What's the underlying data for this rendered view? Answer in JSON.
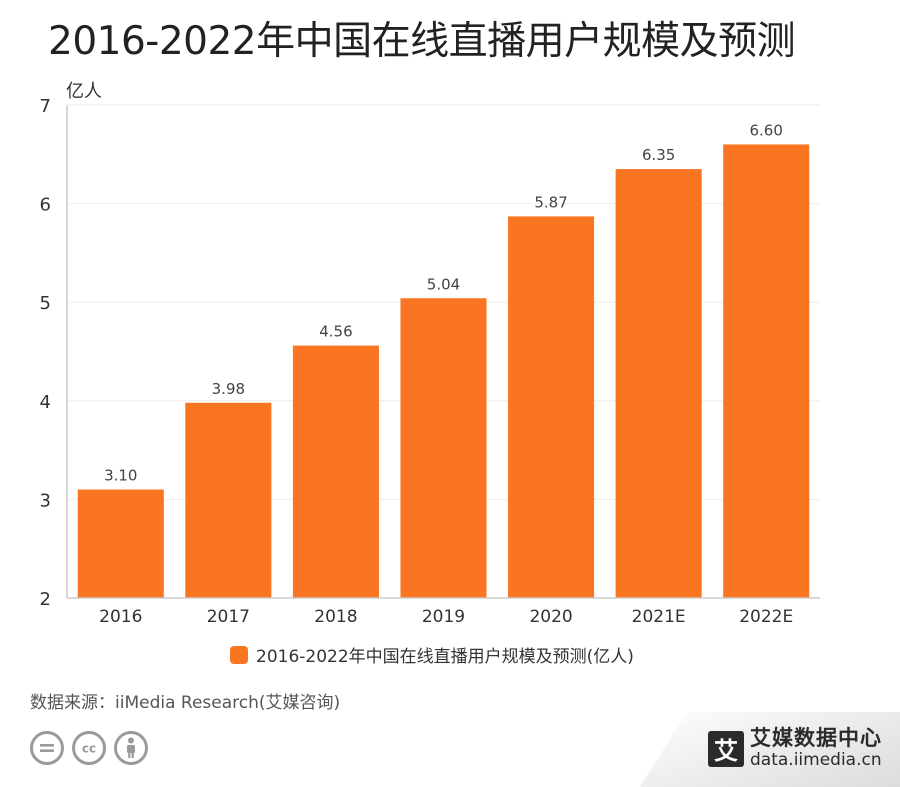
{
  "title": "2016-2022年中国在线直播用户规模及预测",
  "chart_data": {
    "type": "bar",
    "title": "2016-2022年中国在线直播用户规模及预测",
    "ylabel": "亿人",
    "xlabel": "",
    "categories": [
      "2016",
      "2017",
      "2018",
      "2019",
      "2020",
      "2021E",
      "2022E"
    ],
    "series": [
      {
        "name": "2016-2022年中国在线直播用户规模及预测(亿人)",
        "values": [
          3.1,
          3.98,
          4.56,
          5.04,
          5.87,
          6.35,
          6.6
        ],
        "labels": [
          "3.10",
          "3.98",
          "4.56",
          "5.04",
          "5.87",
          "6.35",
          "6.60"
        ]
      }
    ],
    "ylim": [
      2,
      7
    ],
    "yticks": [
      "2",
      "3",
      "4",
      "5",
      "6",
      "7"
    ],
    "grid": true,
    "legend_position": "bottom"
  },
  "colors": {
    "bar": "#FA7522",
    "grid": "#eeeeee",
    "axis": "#cccccc"
  },
  "legend": {
    "label": "2016-2022年中国在线直播用户规模及预测(亿人)"
  },
  "source": {
    "text": "数据来源：iiMedia Research(艾媒咨询)"
  },
  "license_icons": [
    "equals-icon",
    "cc-icon",
    "person-icon"
  ],
  "brand": {
    "logo_glyph": "艾",
    "name": "艾媒数据中心",
    "url": "data.iimedia.cn"
  }
}
